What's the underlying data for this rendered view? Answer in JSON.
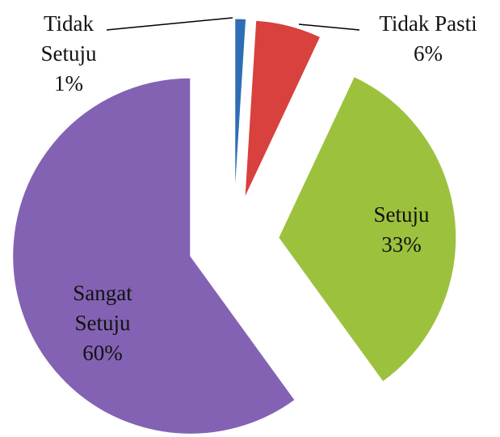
{
  "chart_data": {
    "type": "pie",
    "categories": [
      "Tidak Setuju",
      "Tidak Pasti",
      "Setuju",
      "Sangat Setuju"
    ],
    "values": [
      1,
      6,
      33,
      60
    ],
    "value_labels": [
      "1%",
      "6%",
      "33%",
      "60%"
    ],
    "colors": [
      "#2f6db5",
      "#d8413d",
      "#9cc23d",
      "#8362b3"
    ]
  }
}
